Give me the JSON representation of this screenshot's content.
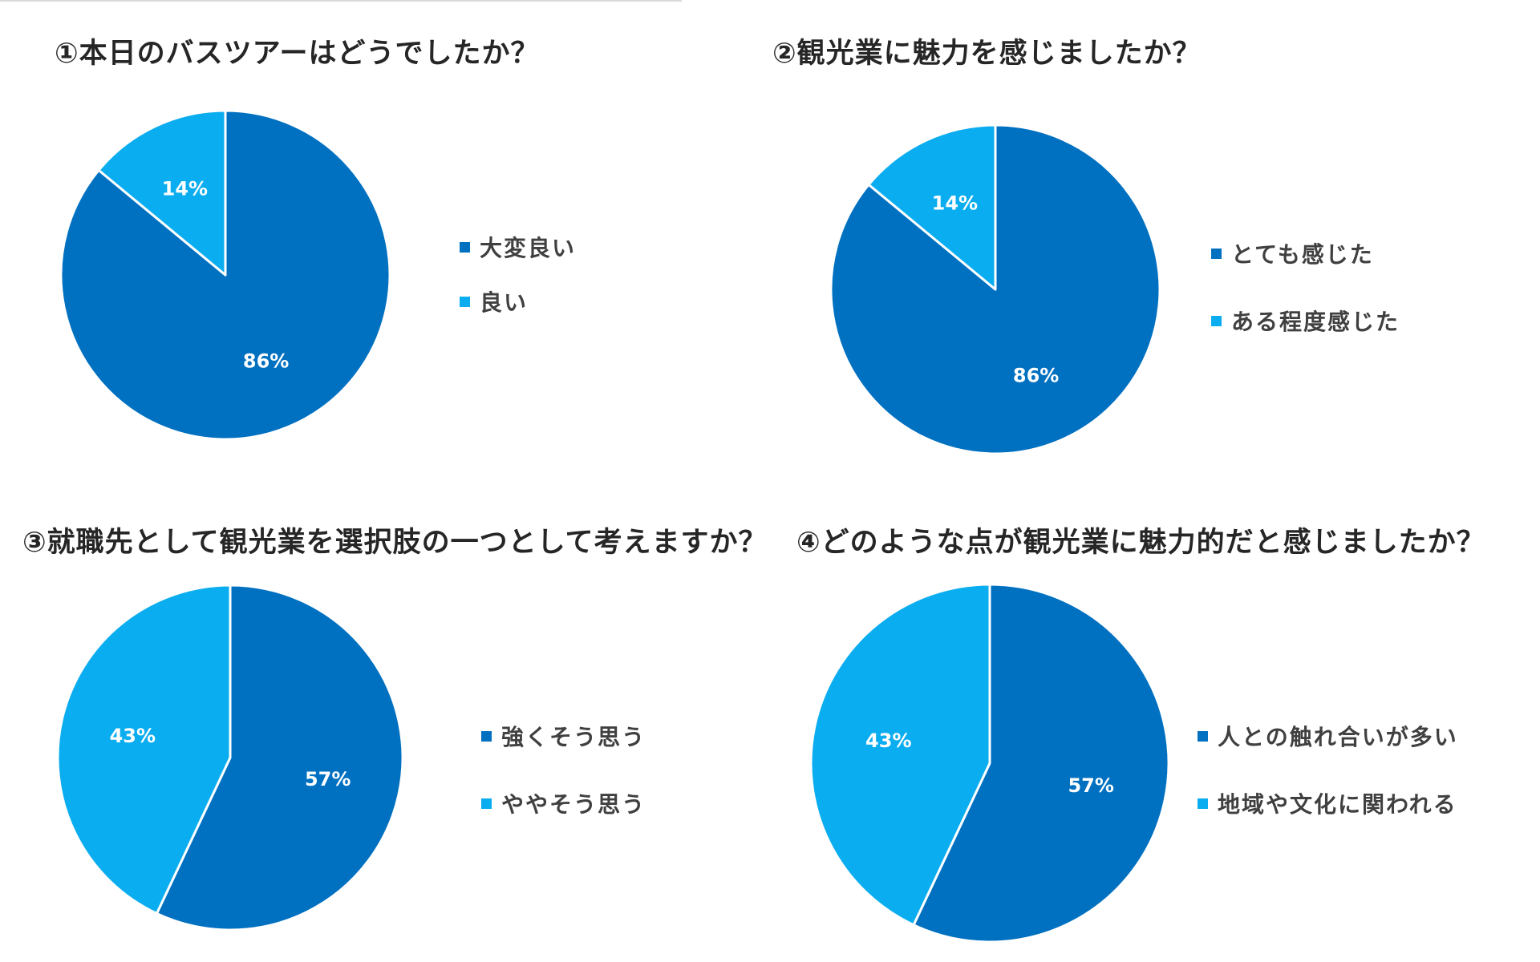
{
  "colors": {
    "dark_blue": "#0070C0",
    "light_blue": "#0AADEF",
    "title_text": "#262626",
    "legend_text": "#404040"
  },
  "chart_data": [
    {
      "type": "pie",
      "title": "①本日のバスツアーはどうでしたか？",
      "slices": [
        {
          "label": "大変良い",
          "value": 86,
          "value_label": "86%",
          "color": "#0070C0"
        },
        {
          "label": "良い",
          "value": 14,
          "value_label": "14%",
          "color": "#0AADEF"
        }
      ],
      "legend_position": "right"
    },
    {
      "type": "pie",
      "title": "②観光業に魅力を感じましたか？",
      "slices": [
        {
          "label": "とても感じた",
          "value": 86,
          "value_label": "86%",
          "color": "#0070C0"
        },
        {
          "label": "ある程度感じた",
          "value": 14,
          "value_label": "14%",
          "color": "#0AADEF"
        }
      ],
      "legend_position": "right"
    },
    {
      "type": "pie",
      "title": "③就職先として観光業を選択肢の一つとして考えますか？",
      "slices": [
        {
          "label": "強くそう思う",
          "value": 57,
          "value_label": "57%",
          "color": "#0070C0"
        },
        {
          "label": "ややそう思う",
          "value": 43,
          "value_label": "43%",
          "color": "#0AADEF"
        }
      ],
      "legend_position": "right"
    },
    {
      "type": "pie",
      "title": "④どのような点が観光業に魅力的だと感じましたか？",
      "slices": [
        {
          "label": "人との触れ合いが多い",
          "value": 57,
          "value_label": "57%",
          "color": "#0070C0"
        },
        {
          "label": "地域や文化に関われる",
          "value": 43,
          "value_label": "43%",
          "color": "#0AADEF"
        }
      ],
      "legend_position": "right"
    }
  ]
}
